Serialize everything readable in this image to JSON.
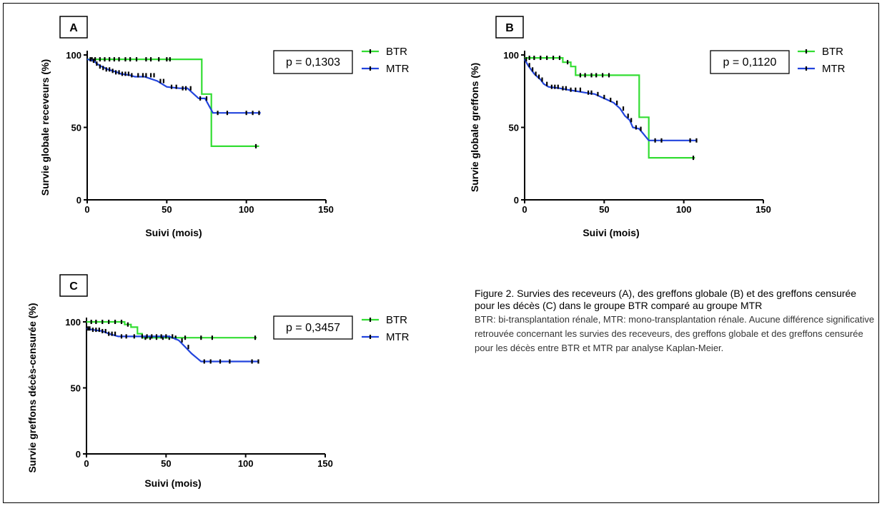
{
  "chart_data": [
    {
      "type": "line",
      "panel": "A",
      "ylabel": "Survie globale receveurs (%)",
      "xlabel": "Suivi (mois)",
      "xlim": [
        0,
        150
      ],
      "ylim": [
        0,
        100
      ],
      "xticks": [
        "0",
        "50",
        "100",
        "150"
      ],
      "yticks": [
        "0",
        "50",
        "100"
      ],
      "pvalue": "p = 0,1303",
      "legend": [
        "BTR",
        "MTR"
      ],
      "legend_position": "top-right",
      "series": [
        {
          "name": "BTR",
          "color": "#33dd33",
          "steps": [
            [
              0,
              97
            ],
            [
              72,
              97
            ],
            [
              72,
              73
            ],
            [
              78,
              73
            ],
            [
              78,
              37
            ],
            [
              108,
              37
            ]
          ],
          "censors": [
            [
              3,
              97
            ],
            [
              5,
              97
            ],
            [
              8,
              97
            ],
            [
              11,
              97
            ],
            [
              14,
              97
            ],
            [
              17,
              97
            ],
            [
              20,
              97
            ],
            [
              24,
              97
            ],
            [
              27,
              97
            ],
            [
              31,
              97
            ],
            [
              37,
              97
            ],
            [
              40,
              97
            ],
            [
              45,
              97
            ],
            [
              50,
              97
            ],
            [
              52,
              97
            ],
            [
              106,
              37
            ]
          ]
        },
        {
          "name": "MTR",
          "color": "#2244dd",
          "steps": [
            [
              0,
              97
            ],
            [
              4,
              96
            ],
            [
              6,
              94
            ],
            [
              9,
              92
            ],
            [
              11,
              91
            ],
            [
              13,
              90
            ],
            [
              16,
              89
            ],
            [
              19,
              88
            ],
            [
              21,
              87
            ],
            [
              27,
              86
            ],
            [
              30,
              85
            ],
            [
              36,
              85
            ],
            [
              44,
              82
            ],
            [
              50,
              78
            ],
            [
              58,
              77
            ],
            [
              63,
              77
            ],
            [
              70,
              70
            ],
            [
              74,
              70
            ],
            [
              79,
              60
            ],
            [
              109,
              60
            ]
          ],
          "censors": [
            [
              2,
              97
            ],
            [
              4,
              96
            ],
            [
              6,
              94
            ],
            [
              8,
              92
            ],
            [
              10,
              91
            ],
            [
              12,
              90
            ],
            [
              14,
              90
            ],
            [
              16,
              89
            ],
            [
              18,
              88
            ],
            [
              20,
              88
            ],
            [
              22,
              87
            ],
            [
              24,
              87
            ],
            [
              26,
              87
            ],
            [
              28,
              86
            ],
            [
              32,
              86
            ],
            [
              35,
              86
            ],
            [
              37,
              86
            ],
            [
              40,
              86
            ],
            [
              42,
              86
            ],
            [
              46,
              82
            ],
            [
              48,
              82
            ],
            [
              53,
              78
            ],
            [
              56,
              78
            ],
            [
              60,
              77
            ],
            [
              62,
              77
            ],
            [
              65,
              77
            ],
            [
              71,
              70
            ],
            [
              75,
              70
            ],
            [
              82,
              60
            ],
            [
              88,
              60
            ],
            [
              100,
              60
            ],
            [
              104,
              60
            ],
            [
              108,
              60
            ]
          ]
        }
      ]
    },
    {
      "type": "line",
      "panel": "B",
      "ylabel": "Survie globale greffons (%)",
      "xlabel": "Suivi (mois)",
      "xlim": [
        0,
        150
      ],
      "ylim": [
        0,
        100
      ],
      "xticks": [
        "0",
        "50",
        "100",
        "150"
      ],
      "yticks": [
        "0",
        "50",
        "100"
      ],
      "pvalue": "p = 0,1120",
      "legend": [
        "BTR",
        "MTR"
      ],
      "legend_position": "top-right",
      "series": [
        {
          "name": "BTR",
          "color": "#33dd33",
          "steps": [
            [
              0,
              98
            ],
            [
              24,
              98
            ],
            [
              24,
              95
            ],
            [
              29,
              95
            ],
            [
              29,
              92
            ],
            [
              32,
              92
            ],
            [
              32,
              86
            ],
            [
              72,
              86
            ],
            [
              72,
              57
            ],
            [
              78,
              57
            ],
            [
              78,
              29
            ],
            [
              107,
              29
            ]
          ],
          "censors": [
            [
              3,
              98
            ],
            [
              6,
              98
            ],
            [
              10,
              98
            ],
            [
              14,
              98
            ],
            [
              18,
              98
            ],
            [
              22,
              98
            ],
            [
              27,
              95
            ],
            [
              35,
              86
            ],
            [
              38,
              86
            ],
            [
              42,
              86
            ],
            [
              45,
              86
            ],
            [
              49,
              86
            ],
            [
              53,
              86
            ],
            [
              106,
              29
            ]
          ]
        },
        {
          "name": "MTR",
          "color": "#2244dd",
          "steps": [
            [
              0,
              97
            ],
            [
              2,
              93
            ],
            [
              4,
              90
            ],
            [
              6,
              87
            ],
            [
              8,
              85
            ],
            [
              10,
              83
            ],
            [
              12,
              80
            ],
            [
              15,
              78
            ],
            [
              22,
              77
            ],
            [
              27,
              76
            ],
            [
              38,
              74
            ],
            [
              44,
              73
            ],
            [
              48,
              71
            ],
            [
              52,
              69
            ],
            [
              56,
              67
            ],
            [
              60,
              63
            ],
            [
              63,
              58
            ],
            [
              66,
              55
            ],
            [
              68,
              50
            ],
            [
              72,
              49
            ],
            [
              75,
              45
            ],
            [
              78,
              41
            ],
            [
              108,
              41
            ]
          ],
          "censors": [
            [
              1,
              97
            ],
            [
              3,
              93
            ],
            [
              5,
              90
            ],
            [
              7,
              87
            ],
            [
              9,
              85
            ],
            [
              11,
              83
            ],
            [
              14,
              80
            ],
            [
              17,
              78
            ],
            [
              19,
              78
            ],
            [
              21,
              78
            ],
            [
              24,
              77
            ],
            [
              26,
              77
            ],
            [
              29,
              76
            ],
            [
              32,
              76
            ],
            [
              35,
              76
            ],
            [
              40,
              74
            ],
            [
              42,
              74
            ],
            [
              46,
              73
            ],
            [
              50,
              71
            ],
            [
              54,
              69
            ],
            [
              58,
              67
            ],
            [
              62,
              63
            ],
            [
              65,
              58
            ],
            [
              67,
              55
            ],
            [
              70,
              50
            ],
            [
              73,
              49
            ],
            [
              82,
              41
            ],
            [
              86,
              41
            ],
            [
              104,
              41
            ],
            [
              108,
              41
            ]
          ]
        }
      ]
    },
    {
      "type": "line",
      "panel": "C",
      "ylabel": "Survie greffons décès-censurée (%)",
      "xlabel": "Suivi (mois)",
      "xlim": [
        0,
        150
      ],
      "ylim": [
        0,
        100
      ],
      "xticks": [
        "0",
        "50",
        "100",
        "150"
      ],
      "yticks": [
        "0",
        "50",
        "100"
      ],
      "pvalue": "p = 0,3457",
      "legend": [
        "BTR",
        "MTR"
      ],
      "legend_position": "top-right",
      "series": [
        {
          "name": "BTR",
          "color": "#33dd33",
          "steps": [
            [
              0,
              100
            ],
            [
              24,
              100
            ],
            [
              24,
              98
            ],
            [
              28,
              98
            ],
            [
              28,
              96
            ],
            [
              32,
              96
            ],
            [
              32,
              91
            ],
            [
              35,
              91
            ],
            [
              35,
              88
            ],
            [
              107,
              88
            ]
          ],
          "censors": [
            [
              3,
              100
            ],
            [
              6,
              100
            ],
            [
              10,
              100
            ],
            [
              14,
              100
            ],
            [
              18,
              100
            ],
            [
              22,
              100
            ],
            [
              26,
              98
            ],
            [
              37,
              88
            ],
            [
              40,
              88
            ],
            [
              44,
              88
            ],
            [
              48,
              88
            ],
            [
              52,
              88
            ],
            [
              56,
              88
            ],
            [
              62,
              88
            ],
            [
              72,
              88
            ],
            [
              79,
              88
            ],
            [
              106,
              88
            ]
          ]
        },
        {
          "name": "MTR",
          "color": "#2244dd",
          "steps": [
            [
              0,
              95
            ],
            [
              4,
              94
            ],
            [
              10,
              93
            ],
            [
              14,
              91
            ],
            [
              20,
              89
            ],
            [
              52,
              89
            ],
            [
              58,
              86
            ],
            [
              62,
              81
            ],
            [
              66,
              76
            ],
            [
              70,
              72
            ],
            [
              72,
              70
            ],
            [
              108,
              70
            ]
          ],
          "censors": [
            [
              1,
              95
            ],
            [
              2,
              95
            ],
            [
              4,
              94
            ],
            [
              6,
              94
            ],
            [
              8,
              94
            ],
            [
              10,
              93
            ],
            [
              12,
              93
            ],
            [
              14,
              91
            ],
            [
              16,
              91
            ],
            [
              18,
              91
            ],
            [
              22,
              89
            ],
            [
              25,
              89
            ],
            [
              30,
              89
            ],
            [
              35,
              89
            ],
            [
              38,
              89
            ],
            [
              41,
              89
            ],
            [
              44,
              89
            ],
            [
              47,
              89
            ],
            [
              50,
              89
            ],
            [
              54,
              89
            ],
            [
              60,
              86
            ],
            [
              64,
              81
            ],
            [
              74,
              70
            ],
            [
              78,
              70
            ],
            [
              84,
              70
            ],
            [
              90,
              70
            ],
            [
              104,
              70
            ],
            [
              108,
              70
            ]
          ]
        }
      ]
    }
  ],
  "caption": {
    "title": "Figure 2. Survies des receveurs (A), des greffons globale (B) et des greffons censurée pour les décès (C) dans le groupe BTR comparé au groupe MTR",
    "body": "BTR: bi-transplantation rénale, MTR: mono-transplantation rénale. Aucune différence significative retrouvée concernant les survies des receveurs, des greffons globale et des greffons censurée pour les décès entre BTR et MTR par analyse Kaplan-Meier."
  }
}
